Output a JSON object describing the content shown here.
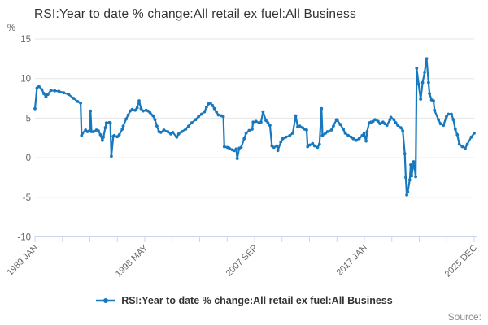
{
  "title": "RSI:Year to date % change:All retail ex fuel:All Business",
  "y_axis": {
    "unit": "%",
    "ticks": [
      15,
      10,
      5,
      0,
      -5,
      -10
    ],
    "min": -10,
    "max": 15
  },
  "x_axis": {
    "labels": [
      "1989 JAN",
      "1998 MAY",
      "2007 SEP",
      "2017 JAN",
      "2025 DEC"
    ],
    "minor_tick_count": 17
  },
  "legend": {
    "label": "RSI:Year to date % change:All retail ex fuel:All Business"
  },
  "source": {
    "label": "Source:"
  },
  "colors": {
    "series": "#1878be",
    "gridline": "#e6e6e6",
    "axis_line": "#ccd6eb",
    "tick_label": "#666666",
    "title": "#333333",
    "legend_text": "#333333",
    "source_text": "#8c8c8c"
  },
  "chart_data": {
    "type": "line",
    "title": "RSI:Year to date % change:All retail ex fuel:All Business",
    "xlabel": "",
    "ylabel": "%",
    "ylim": [
      -10,
      15
    ],
    "x_unit": "month index, 0 = 1989 JAN, 443 = 2025 DEC",
    "x_tick_labels": [
      "1989 JAN",
      "1998 MAY",
      "2007 SEP",
      "2017 JAN",
      "2025 DEC"
    ],
    "grid": true,
    "legend_position": "bottom",
    "series": [
      {
        "name": "RSI:Year to date % change:All retail ex fuel:All Business",
        "points": [
          [
            0,
            6.2
          ],
          [
            2,
            8.8
          ],
          [
            4,
            9.0
          ],
          [
            7,
            8.6
          ],
          [
            9,
            8.1
          ],
          [
            11,
            7.7
          ],
          [
            13,
            8.0
          ],
          [
            16,
            8.5
          ],
          [
            20,
            8.45
          ],
          [
            24,
            8.4
          ],
          [
            29,
            8.2
          ],
          [
            34,
            8.0
          ],
          [
            39,
            7.5
          ],
          [
            43,
            7.1
          ],
          [
            46,
            6.9
          ],
          [
            47,
            2.8
          ],
          [
            48,
            3.1
          ],
          [
            51,
            3.5
          ],
          [
            53,
            3.3
          ],
          [
            55,
            3.4
          ],
          [
            56,
            5.9
          ],
          [
            57,
            3.3
          ],
          [
            59,
            3.3
          ],
          [
            62,
            3.5
          ],
          [
            64,
            3.4
          ],
          [
            66,
            2.9
          ],
          [
            68,
            2.2
          ],
          [
            69,
            2.6
          ],
          [
            71,
            3.8
          ],
          [
            72,
            4.4
          ],
          [
            75,
            4.45
          ],
          [
            76,
            4.4
          ],
          [
            77,
            0.2
          ],
          [
            79,
            2.7
          ],
          [
            80,
            2.8
          ],
          [
            83,
            2.65
          ],
          [
            85,
            2.9
          ],
          [
            88,
            3.6
          ],
          [
            89,
            4.0
          ],
          [
            92,
            4.9
          ],
          [
            94,
            5.4
          ],
          [
            96,
            5.9
          ],
          [
            98,
            6.1
          ],
          [
            101,
            6.0
          ],
          [
            103,
            6.3
          ],
          [
            105,
            7.2
          ],
          [
            107,
            6.2
          ],
          [
            109,
            5.9
          ],
          [
            112,
            6.0
          ],
          [
            114,
            5.9
          ],
          [
            116,
            5.7
          ],
          [
            119,
            5.3
          ],
          [
            121,
            4.8
          ],
          [
            123,
            4.0
          ],
          [
            125,
            3.3
          ],
          [
            127,
            3.2
          ],
          [
            130,
            3.5
          ],
          [
            134,
            3.3
          ],
          [
            137,
            3.0
          ],
          [
            139,
            3.2
          ],
          [
            143,
            2.6
          ],
          [
            145,
            3.0
          ],
          [
            148,
            3.3
          ],
          [
            152,
            3.6
          ],
          [
            155,
            4.0
          ],
          [
            158,
            4.4
          ],
          [
            162,
            4.8
          ],
          [
            165,
            5.2
          ],
          [
            168,
            5.5
          ],
          [
            171,
            5.8
          ],
          [
            173,
            6.4
          ],
          [
            175,
            6.8
          ],
          [
            177,
            6.9
          ],
          [
            179,
            6.6
          ],
          [
            181,
            6.2
          ],
          [
            183,
            5.8
          ],
          [
            185,
            5.4
          ],
          [
            188,
            5.3
          ],
          [
            190,
            5.2
          ],
          [
            191,
            1.4
          ],
          [
            194,
            1.3
          ],
          [
            196,
            1.2
          ],
          [
            199,
            1.0
          ],
          [
            201,
            0.9
          ],
          [
            203,
            1.1
          ],
          [
            204,
            -0.1
          ],
          [
            206,
            1.2
          ],
          [
            208,
            1.3
          ],
          [
            211,
            2.4
          ],
          [
            213,
            3.1
          ],
          [
            216,
            3.45
          ],
          [
            219,
            3.6
          ],
          [
            220,
            4.5
          ],
          [
            223,
            4.6
          ],
          [
            226,
            4.4
          ],
          [
            228,
            4.5
          ],
          [
            230,
            5.8
          ],
          [
            233,
            4.7
          ],
          [
            235,
            4.4
          ],
          [
            237,
            4.1
          ],
          [
            239,
            1.5
          ],
          [
            241,
            1.3
          ],
          [
            244,
            1.5
          ],
          [
            245,
            0.9
          ],
          [
            248,
            2.0
          ],
          [
            250,
            2.4
          ],
          [
            253,
            2.6
          ],
          [
            257,
            2.8
          ],
          [
            260,
            3.1
          ],
          [
            263,
            5.3
          ],
          [
            265,
            3.9
          ],
          [
            267,
            4.0
          ],
          [
            270,
            3.8
          ],
          [
            272,
            3.6
          ],
          [
            274,
            3.5
          ],
          [
            275,
            1.4
          ],
          [
            277,
            1.6
          ],
          [
            280,
            1.8
          ],
          [
            282,
            1.5
          ],
          [
            285,
            1.3
          ],
          [
            287,
            1.7
          ],
          [
            289,
            6.2
          ],
          [
            290,
            2.8
          ],
          [
            293,
            3.1
          ],
          [
            295,
            3.3
          ],
          [
            299,
            3.5
          ],
          [
            301,
            4.0
          ],
          [
            304,
            4.8
          ],
          [
            305,
            4.7
          ],
          [
            308,
            4.2
          ],
          [
            311,
            3.6
          ],
          [
            313,
            3.1
          ],
          [
            316,
            2.8
          ],
          [
            319,
            2.6
          ],
          [
            321,
            2.4
          ],
          [
            324,
            2.2
          ],
          [
            327,
            2.4
          ],
          [
            330,
            2.8
          ],
          [
            332,
            3.1
          ],
          [
            334,
            2.1
          ],
          [
            335,
            3.3
          ],
          [
            337,
            4.4
          ],
          [
            339,
            4.5
          ],
          [
            341,
            4.6
          ],
          [
            343,
            4.8
          ],
          [
            346,
            4.6
          ],
          [
            348,
            4.3
          ],
          [
            351,
            4.5
          ],
          [
            353,
            4.3
          ],
          [
            355,
            4.1
          ],
          [
            358,
            4.8
          ],
          [
            359,
            5.1
          ],
          [
            362,
            4.8
          ],
          [
            364,
            4.4
          ],
          [
            366,
            4.1
          ],
          [
            369,
            3.8
          ],
          [
            371,
            3.4
          ],
          [
            373,
            0.5
          ],
          [
            374,
            -2.5
          ],
          [
            375,
            -4.7
          ],
          [
            376,
            -4.3
          ],
          [
            378,
            -2.8
          ],
          [
            379,
            -0.9
          ],
          [
            380,
            -2.3
          ],
          [
            382,
            -0.5
          ],
          [
            384,
            -2.4
          ],
          [
            385,
            11.3
          ],
          [
            387,
            9.3
          ],
          [
            389,
            7.4
          ],
          [
            391,
            9.5
          ],
          [
            393,
            10.8
          ],
          [
            395,
            12.5
          ],
          [
            397,
            9.5
          ],
          [
            398,
            8.1
          ],
          [
            400,
            7.3
          ],
          [
            402,
            7.2
          ],
          [
            403,
            6.0
          ],
          [
            407,
            4.8
          ],
          [
            409,
            4.3
          ],
          [
            412,
            4.1
          ],
          [
            415,
            5.2
          ],
          [
            417,
            5.5
          ],
          [
            420,
            5.5
          ],
          [
            422,
            4.8
          ],
          [
            424,
            3.6
          ],
          [
            426,
            2.9
          ],
          [
            428,
            1.7
          ],
          [
            431,
            1.4
          ],
          [
            434,
            1.2
          ],
          [
            436,
            1.7
          ],
          [
            440,
            2.6
          ],
          [
            443,
            3.1
          ]
        ]
      }
    ]
  }
}
